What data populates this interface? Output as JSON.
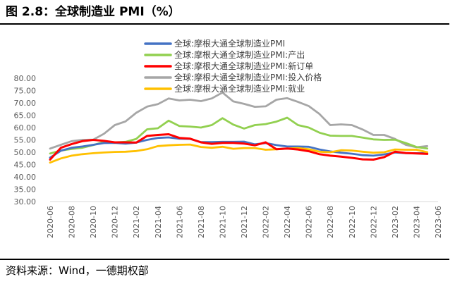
{
  "figure": {
    "title": "图 2.8：全球制造业 PMI（%）",
    "source": "资料来源：Wind，一德期权部"
  },
  "colors": {
    "pmi": "#4472c4",
    "output": "#92d050",
    "new_orders": "#ff0000",
    "input_prices": "#a6a6a6",
    "employment": "#ffc000"
  },
  "chart_data": {
    "type": "line",
    "title": "",
    "xlabel": "",
    "ylabel": "",
    "ylim": [
      30,
      80
    ],
    "yticks": [
      "30.00",
      "35.00",
      "40.00",
      "45.00",
      "50.00",
      "55.00",
      "60.00",
      "65.00",
      "70.00",
      "75.00",
      "80.00"
    ],
    "grid": false,
    "legend_position": "top-center",
    "x": [
      "2020-06",
      "2020-07",
      "2020-08",
      "2020-09",
      "2020-10",
      "2020-11",
      "2020-12",
      "2021-01",
      "2021-02",
      "2021-03",
      "2021-04",
      "2021-05",
      "2021-06",
      "2021-07",
      "2021-08",
      "2021-09",
      "2021-10",
      "2021-11",
      "2021-12",
      "2022-01",
      "2022-02",
      "2022-03",
      "2022-04",
      "2022-05",
      "2022-06",
      "2022-07",
      "2022-08",
      "2022-09",
      "2022-10",
      "2022-11",
      "2022-12",
      "2023-01",
      "2023-02",
      "2023-03",
      "2023-04",
      "2023-05",
      "2023-06"
    ],
    "xticks": [
      "2020-06",
      "2020-08",
      "2020-10",
      "2020-12",
      "2021-02",
      "2021-04",
      "2021-06",
      "2021-08",
      "2021-10",
      "2021-12",
      "2022-02",
      "2022-04",
      "2022-06",
      "2022-08",
      "2022-10",
      "2022-12",
      "2023-02",
      "2023-04",
      "2023-06"
    ],
    "series": [
      {
        "name": "全球:摩根大通全球制造业PMI",
        "color_key": "pmi",
        "values": [
          47.8,
          50.6,
          51.8,
          52.3,
          53.0,
          53.7,
          53.8,
          53.5,
          53.9,
          55.0,
          55.8,
          56.0,
          55.5,
          55.4,
          54.1,
          54.1,
          54.2,
          54.2,
          54.3,
          53.2,
          53.7,
          52.9,
          52.3,
          52.3,
          52.2,
          51.1,
          50.3,
          49.8,
          49.4,
          48.8,
          48.6,
          49.1,
          49.9,
          49.6,
          49.6,
          49.6,
          null
        ]
      },
      {
        "name": "全球:摩根大通全球制造业PMI:产出",
        "color_key": "output",
        "values": [
          49.5,
          50.7,
          51.3,
          51.8,
          52.9,
          54.2,
          54.0,
          54.2,
          55.4,
          59.3,
          59.7,
          62.8,
          60.6,
          60.4,
          60.0,
          61.0,
          63.8,
          61.2,
          59.6,
          61.0,
          61.4,
          62.4,
          64.0,
          61.0,
          60.0,
          57.9,
          56.7,
          56.6,
          56.6,
          55.9,
          55.2,
          55.0,
          55.1,
          53.7,
          52.1,
          51.5,
          null
        ]
      },
      {
        "name": "全球:摩根大通全球制造业PMI:新订单",
        "color_key": "new_orders",
        "values": [
          47.0,
          51.8,
          53.3,
          54.5,
          55.0,
          54.6,
          54.0,
          54.0,
          53.9,
          56.6,
          57.0,
          57.3,
          55.8,
          55.5,
          54.0,
          53.4,
          53.8,
          53.8,
          53.5,
          52.8,
          54.0,
          51.2,
          51.5,
          51.1,
          50.4,
          49.2,
          48.6,
          48.2,
          47.7,
          47.1,
          47.0,
          48.0,
          50.2,
          49.7,
          49.5,
          49.3,
          null
        ]
      },
      {
        "name": "全球:摩根大通全球制造业PMI:投入价格",
        "color_key": "input_prices",
        "values": [
          51.5,
          53.0,
          54.5,
          55.0,
          55.1,
          57.5,
          61.0,
          62.5,
          66.0,
          68.5,
          69.5,
          71.8,
          71.0,
          71.3,
          70.7,
          71.8,
          74.2,
          70.6,
          69.6,
          68.4,
          68.6,
          71.3,
          71.9,
          70.4,
          68.7,
          65.5,
          61.0,
          61.3,
          61.0,
          59.2,
          57.0,
          57.0,
          55.4,
          53.0,
          52.0,
          52.5,
          null
        ]
      },
      {
        "name": "全球:摩根大通全球制造业PMI:就业",
        "color_key": "employment",
        "values": [
          45.8,
          47.5,
          48.6,
          49.2,
          49.6,
          49.9,
          50.1,
          50.2,
          50.5,
          51.2,
          52.5,
          52.8,
          53.0,
          53.1,
          52.1,
          51.8,
          52.2,
          51.4,
          51.7,
          51.7,
          51.0,
          51.2,
          51.5,
          51.7,
          51.2,
          50.2,
          50.0,
          50.8,
          50.7,
          50.2,
          49.8,
          50.0,
          51.1,
          51.0,
          51.0,
          50.0,
          null
        ]
      }
    ]
  }
}
